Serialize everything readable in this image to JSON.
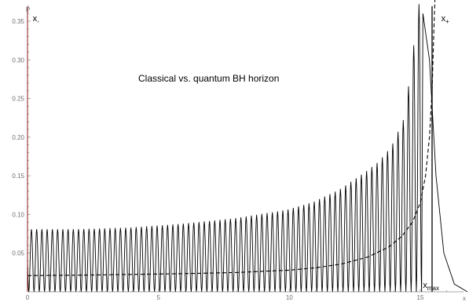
{
  "chart_data": {
    "type": "line",
    "title": "Classical vs. quantum BH horizon",
    "xlabel": "x",
    "ylabel": "P",
    "xlim": [
      0,
      17.3
    ],
    "ylim": [
      0,
      0.38
    ],
    "x_ticks": [
      "0",
      "5",
      "10",
      "15"
    ],
    "y_ticks": [
      "0.05",
      "0.10",
      "0.15",
      "0.20",
      "0.25",
      "0.30",
      "0.35"
    ],
    "x_tick_values": [
      0,
      5,
      10,
      15
    ],
    "y_tick_values": [
      0.05,
      0.1,
      0.15,
      0.2,
      0.25,
      0.3,
      0.35
    ],
    "grid": false,
    "vertical_lines": [
      {
        "x": 0,
        "color": "#8b1a1a"
      },
      {
        "x": 15.45,
        "color": "#000000"
      }
    ],
    "annotations": {
      "x_minus": {
        "base": "x",
        "sub": "-",
        "x": 0.2,
        "y": 0.35
      },
      "x_plus": {
        "base": "x",
        "sub": "+",
        "x": 15.8,
        "y": 0.35
      },
      "x_max": {
        "base": "x",
        "sub": "max",
        "x": 15.1,
        "y": 0.005
      }
    },
    "series": [
      {
        "style": "solid",
        "description_points": {
          "peak_x_spacing": 0.2,
          "envelope": [
            [
              0,
              0.081
            ],
            [
              2,
              0.081
            ],
            [
              4,
              0.083
            ],
            [
              6,
              0.088
            ],
            [
              8,
              0.095
            ],
            [
              10,
              0.106
            ],
            [
              11,
              0.116
            ],
            [
              12,
              0.132
            ],
            [
              13,
              0.155
            ],
            [
              13.5,
              0.168
            ],
            [
              14,
              0.188
            ],
            [
              14.5,
              0.226
            ],
            [
              15.05,
              0.372
            ]
          ],
          "tail": [
            [
              15.05,
              0.372
            ],
            [
              15.35,
              0.3
            ],
            [
              15.6,
              0.15
            ],
            [
              15.9,
              0.05
            ],
            [
              16.3,
              0.01
            ],
            [
              16.8,
              0.0
            ]
          ]
        }
      },
      {
        "style": "dashed",
        "points": [
          [
            0,
            0.021
          ],
          [
            2,
            0.0215
          ],
          [
            4,
            0.0225
          ],
          [
            6,
            0.0235
          ],
          [
            8,
            0.025
          ],
          [
            10,
            0.028
          ],
          [
            11,
            0.031
          ],
          [
            12,
            0.036
          ],
          [
            13,
            0.045
          ],
          [
            13.8,
            0.058
          ],
          [
            14.3,
            0.072
          ],
          [
            14.7,
            0.09
          ],
          [
            15.0,
            0.115
          ],
          [
            15.2,
            0.15
          ],
          [
            15.35,
            0.2
          ],
          [
            15.45,
            0.26
          ],
          [
            15.52,
            0.34
          ],
          [
            15.56,
            0.39
          ]
        ]
      }
    ]
  }
}
